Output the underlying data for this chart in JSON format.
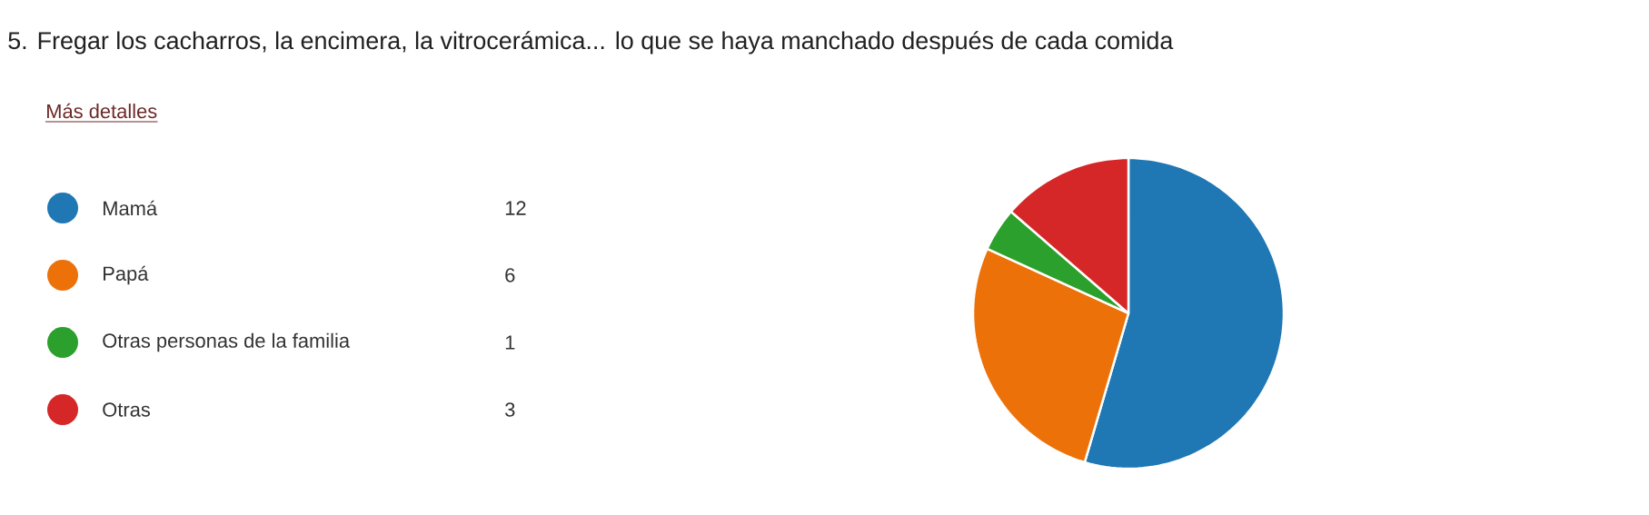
{
  "chart_data": {
    "type": "pie",
    "title": "5.  Fregar los cacharros, la encimera, la vitrocerámica... lo que se haya manchado después de cada comida",
    "annotations": [
      "Más detalles"
    ],
    "categories": [
      "Mamá",
      "Papá",
      "Otras personas de la familia",
      "Otras"
    ],
    "values": [
      12,
      6,
      1,
      3
    ],
    "colors": [
      "#1f77b4",
      "#ed7109",
      "#2ca02c",
      "#d62728"
    ],
    "legend": "left",
    "data_labels": true
  }
}
